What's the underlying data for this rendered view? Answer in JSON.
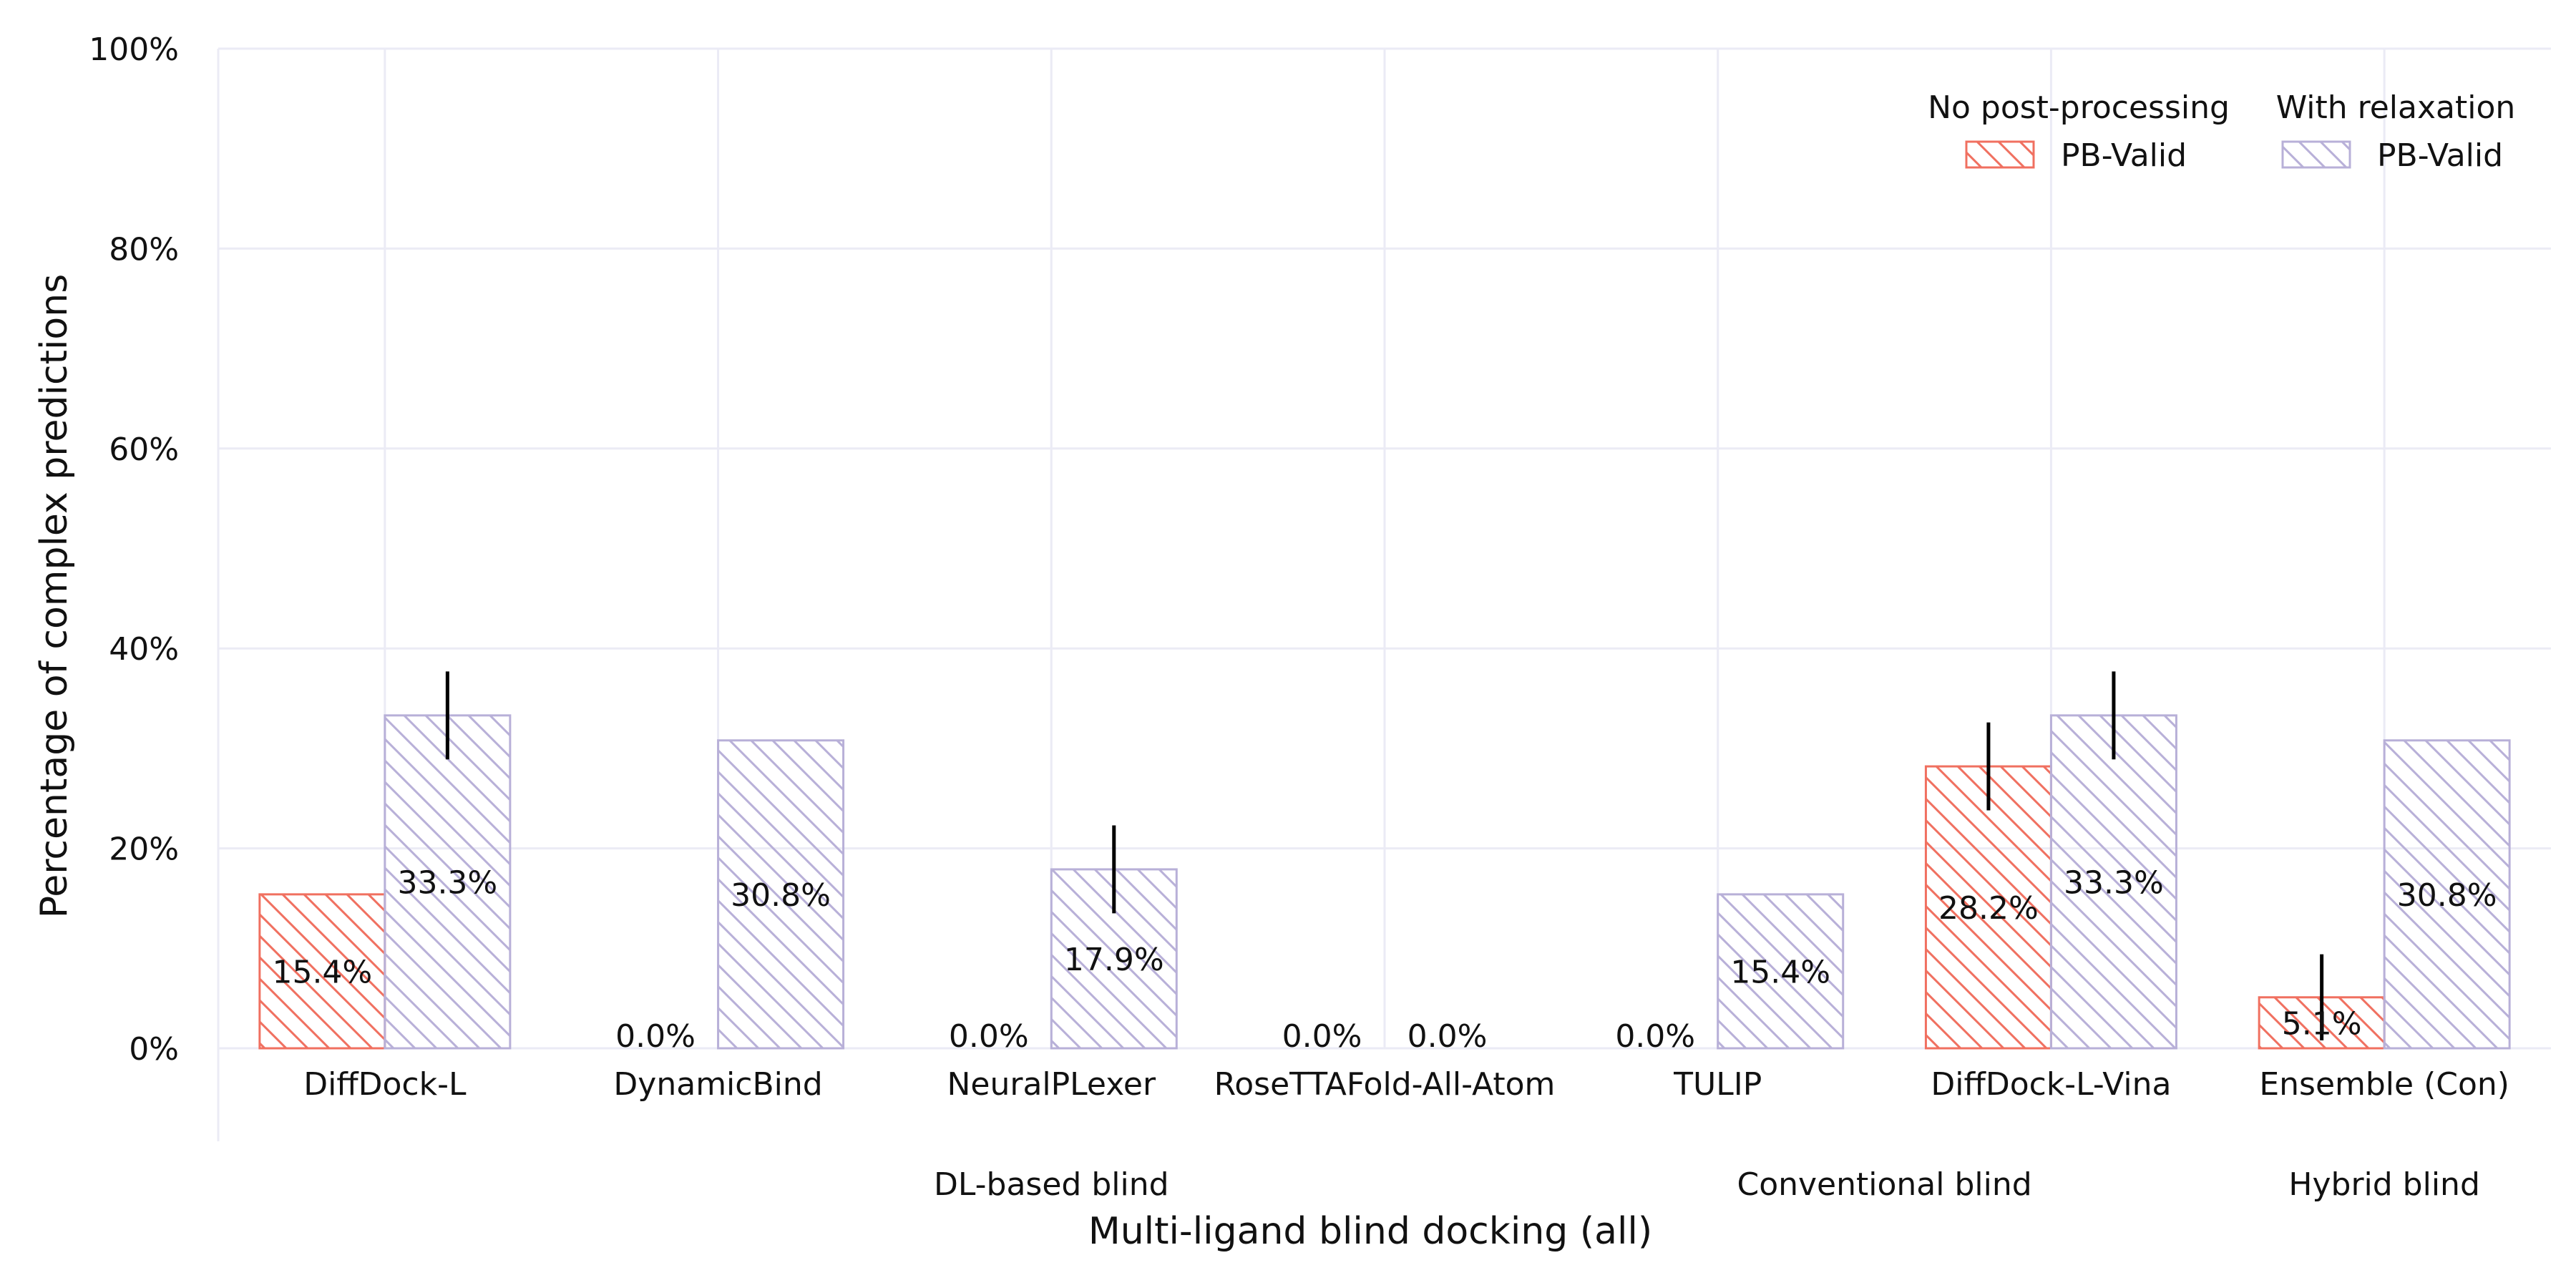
{
  "chart_data": {
    "type": "bar",
    "title": "",
    "xlabel": "Multi-ligand blind docking (all)",
    "ylabel": "Percentage of complex predictions",
    "ylim": [
      0,
      100
    ],
    "yticks": [
      0,
      20,
      40,
      60,
      80,
      100
    ],
    "ytick_suffix": "%",
    "grid": true,
    "legend_position": "top-right",
    "categories": [
      "DiffDock-L",
      "DynamicBind",
      "NeuralPLexer",
      "RoseTTAFold-All-Atom",
      "TULIP",
      "DiffDock-L-Vina",
      "Ensemble (Con)"
    ],
    "groups": [
      {
        "label": "DL-based blind",
        "from": 0,
        "to": 4
      },
      {
        "label": "Conventional blind",
        "from": 4,
        "to": 5
      },
      {
        "label": "Hybrid blind",
        "from": 6,
        "to": 6
      }
    ],
    "series": [
      {
        "legend_heading": "No post-processing",
        "name": "PB-Valid",
        "color": "#f07060",
        "values": [
          15.4,
          0.0,
          0.0,
          0.0,
          0.0,
          28.2,
          5.1
        ],
        "value_labels": [
          "15.4%",
          "0.0%",
          "0.0%",
          "0.0%",
          "0.0%",
          "28.2%",
          "5.1%"
        ],
        "error_low": [
          null,
          null,
          null,
          null,
          null,
          23.8,
          0.8
        ],
        "error_high": [
          null,
          null,
          null,
          null,
          null,
          32.6,
          9.4
        ]
      },
      {
        "legend_heading": "With relaxation",
        "name": "PB-Valid",
        "color": "#b8b0d8",
        "values": [
          33.3,
          30.8,
          17.9,
          0.0,
          15.4,
          33.3,
          30.8
        ],
        "value_labels": [
          "33.3%",
          "30.8%",
          "17.9%",
          "0.0%",
          "15.4%",
          "33.3%",
          "30.8%"
        ],
        "error_low": [
          28.9,
          null,
          13.5,
          null,
          null,
          28.9,
          null
        ],
        "error_high": [
          37.7,
          null,
          22.3,
          null,
          null,
          37.7,
          null
        ]
      }
    ]
  }
}
